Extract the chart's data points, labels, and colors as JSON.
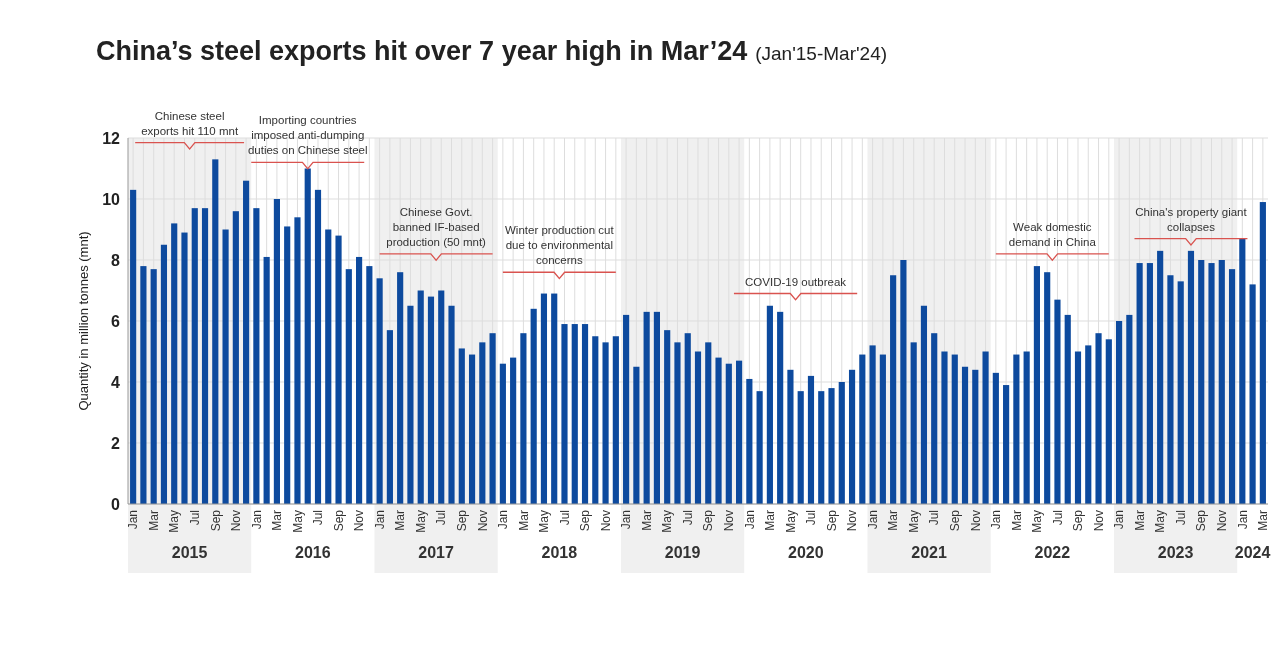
{
  "chart_data": {
    "type": "bar",
    "title": "China’s steel exports hit over 7 year high in Mar’24",
    "subtitle": "(Jan'15-Mar'24)",
    "ylabel": "Quantity in million tonnes (mnt)",
    "categories": [
      "Jan",
      null,
      "Mar",
      null,
      "May",
      null,
      "Jul",
      null,
      "Sep",
      null,
      "Nov",
      null,
      "Jan",
      null,
      "Mar",
      null,
      "May",
      null,
      "Jul",
      null,
      "Sep",
      null,
      "Nov",
      null,
      "Jan",
      null,
      "Mar",
      null,
      "May",
      null,
      "Jul",
      null,
      "Sep",
      null,
      "Nov",
      null,
      "Jan",
      null,
      "Mar",
      null,
      "May",
      null,
      "Jul",
      null,
      "Sep",
      null,
      "Nov",
      null,
      "Jan",
      null,
      "Mar",
      null,
      "May",
      null,
      "Jul",
      null,
      "Sep",
      null,
      "Nov",
      null,
      "Jan",
      null,
      "Mar",
      null,
      "May",
      null,
      "Jul",
      null,
      "Sep",
      null,
      "Nov",
      null,
      "Jan",
      null,
      "Mar",
      null,
      "May",
      null,
      "Jul",
      null,
      "Sep",
      null,
      "Nov",
      null,
      "Jan",
      null,
      "Mar",
      null,
      "May",
      null,
      "Jul",
      null,
      "Sep",
      null,
      "Nov",
      null,
      "Jan",
      null,
      "Mar",
      null,
      "May",
      null,
      "Jul",
      null,
      "Sep",
      null,
      "Nov",
      null,
      "Jan",
      null,
      "Mar"
    ],
    "values": [
      10.3,
      7.8,
      7.7,
      8.5,
      9.2,
      8.9,
      9.7,
      9.7,
      11.3,
      9.0,
      9.6,
      10.6,
      9.7,
      8.1,
      10.0,
      9.1,
      9.4,
      11.0,
      10.3,
      9.0,
      8.8,
      7.7,
      8.1,
      7.8,
      7.4,
      5.7,
      7.6,
      6.5,
      7.0,
      6.8,
      7.0,
      6.5,
      5.1,
      4.9,
      5.3,
      5.6,
      4.6,
      4.8,
      5.6,
      6.4,
      6.9,
      6.9,
      5.9,
      5.9,
      5.9,
      5.5,
      5.3,
      5.5,
      6.2,
      4.5,
      6.3,
      6.3,
      5.7,
      5.3,
      5.6,
      5.0,
      5.3,
      4.8,
      4.6,
      4.7,
      4.1,
      3.7,
      6.5,
      6.3,
      4.4,
      3.7,
      4.2,
      3.7,
      3.8,
      4.0,
      4.4,
      4.9,
      5.2,
      4.9,
      7.5,
      8.0,
      5.3,
      6.5,
      5.6,
      5.0,
      4.9,
      4.5,
      4.4,
      5.0,
      4.3,
      3.9,
      4.9,
      5.0,
      7.8,
      7.6,
      6.7,
      6.2,
      5.0,
      5.2,
      5.6,
      5.4,
      6.0,
      6.2,
      7.9,
      7.9,
      8.3,
      7.5,
      7.3,
      8.3,
      8.0,
      7.9,
      8.0,
      7.7,
      8.7,
      7.2,
      9.9
    ],
    "color": "#0d4a9e",
    "ylim": [
      0,
      12
    ],
    "yticks": [
      0,
      2,
      4,
      6,
      8,
      10,
      12
    ],
    "grid": true,
    "annotations": [
      "Chinese steel\nexports hit 110 mnt",
      "Importing countries\nimposed anti-dumping\nduties on Chinese steel",
      "Chinese Govt.\nbanned IF-based\nproduction (50 mnt)",
      "Winter production cut\ndue to environmental\nconcerns",
      "COVID-19 outbreak",
      "Weak domestic\ndemand in China",
      "China's property giant\ncollapses",
      "2015",
      "2016",
      "2017",
      "2018",
      "2019",
      "2020",
      "2021",
      "2022",
      "2023",
      "2024"
    ]
  }
}
